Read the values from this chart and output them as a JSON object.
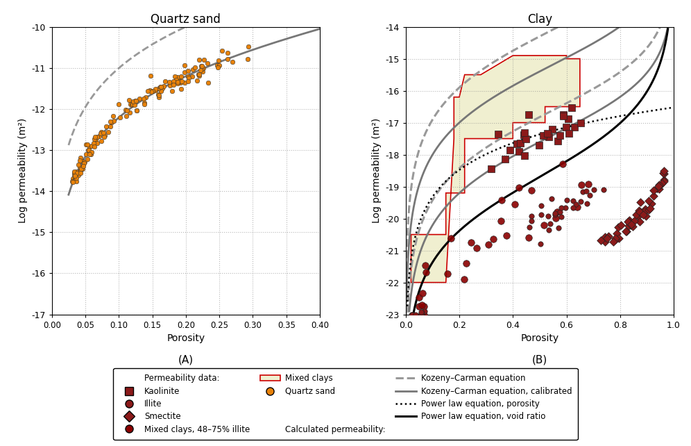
{
  "left_title": "Quartz sand",
  "right_title": "Clay",
  "xlabel": "Porosity",
  "ylabel": "Log permeability (m²)",
  "left_xlim": [
    0.0,
    0.4
  ],
  "left_ylim": [
    -17.0,
    -10.0
  ],
  "right_xlim": [
    0.0,
    1.0
  ],
  "right_ylim": [
    -23.0,
    -14.0
  ],
  "left_xticks": [
    0.0,
    0.05,
    0.1,
    0.15,
    0.2,
    0.25,
    0.3,
    0.35,
    0.4
  ],
  "right_xticks": [
    0.0,
    0.2,
    0.4,
    0.6,
    0.8,
    1.0
  ],
  "left_yticks": [
    -17,
    -16,
    -15,
    -14,
    -13,
    -12,
    -11,
    -10
  ],
  "right_yticks": [
    -23,
    -22,
    -21,
    -20,
    -19,
    -18,
    -17,
    -16,
    -15,
    -14
  ],
  "label_A": "(A)",
  "label_B": "(B)",
  "dark_red": "#8B1A1A",
  "orange": "#E8820A",
  "beige": "#F0EFD0",
  "red_edge": "#CC0000",
  "gray_dashed_color": "#999999",
  "gray_solid_color": "#777777",
  "background": "#ffffff",
  "grid_color": "#888888",
  "legend_header1": "Permeability data:",
  "legend_header3": "Calculated permeability:",
  "leg_kaolinite": "Kaolinite",
  "leg_illite": "Illite",
  "leg_smectite": "Smectite",
  "leg_mixed_illite": "Mixed clays, 48–75% illite",
  "leg_mixed_clays": "Mixed clays",
  "leg_quartz": "Quartz sand",
  "leg_kc": "Kozeny–Carman equation",
  "leg_kc_cal": "Kozeny–Carman equation, calibrated",
  "leg_pl_por": "Power law equation, porosity",
  "leg_pl_void": "Power law equation, void ratio",
  "sand_C_solid": 5e-10,
  "sand_C_dashed": 8e-09,
  "clay_C_kc_dash1": 1e-14,
  "clay_C_kc_dash2": 3e-17,
  "clay_C_kc_sol1": 8e-16,
  "clay_C_kc_sol2": 5e-18,
  "clay_pl_por_C": 3e-17,
  "clay_pl_por_n": 2.8,
  "clay_pl_void_C": 2e-19,
  "clay_pl_void_n": 2.8
}
